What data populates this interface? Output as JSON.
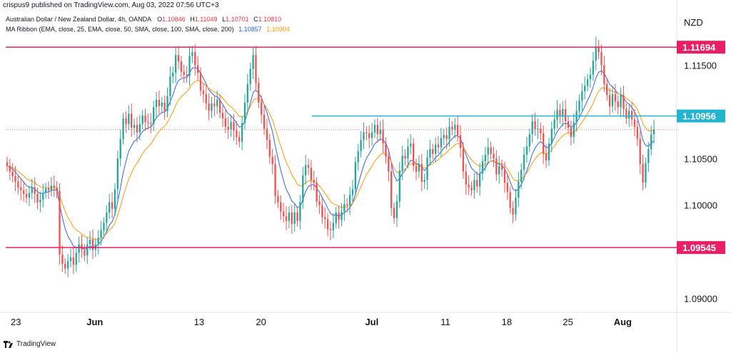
{
  "header": {
    "publisher_line": "crispus9 published on TradingView.com, Aug 03, 2022 07:56 UTC+3"
  },
  "legend": {
    "symbol_line": "Australian Dollar / New Zealand Dollar, 4h, OANDA",
    "o_label": "O",
    "o_value": "1.10846",
    "h_label": "H",
    "h_value": "1.11049",
    "l_label": "L",
    "l_value": "1.10701",
    "c_label": "C",
    "c_value": "1.10810",
    "ma_line": "MA Ribbon (EMA, close, 25, EMA, close, 50, SMA, close, 100, SMA, close, 200)",
    "ma_value_1": "1.10857",
    "ma_value_2": "1.10904"
  },
  "currency": "NZD",
  "footer": {
    "brand": "TradingView"
  },
  "colors": {
    "up": "#26a69a",
    "down": "#ef5350",
    "ema25": "#2962ff",
    "ema50": "#ff9800",
    "resistance": "#e91e63",
    "support_cyan": "#22b5d0",
    "price_dotted": "#ef5350"
  },
  "chart_data": {
    "type": "candlestick",
    "symbol": "AUDNZD",
    "timeframe": "4h",
    "y_axis_ticks": [
      "1.11500",
      "1.10500",
      "1.10000",
      "1.09000"
    ],
    "x_axis_ticks": [
      "23",
      "Jun",
      "13",
      "20",
      "Jul",
      "11",
      "18",
      "25",
      "Aug"
    ],
    "ylim": [
      1.0885,
      1.122
    ],
    "horizontal_levels": [
      {
        "label": "1.11694",
        "value": 1.11694,
        "color": "#e91e63"
      },
      {
        "label": "1.10956",
        "value": 1.10956,
        "color": "#22b5d0"
      },
      {
        "label": "1.09545",
        "value": 1.09545,
        "color": "#e91e63"
      }
    ],
    "last_price": 1.1081,
    "closes": [
      1.1042,
      1.1036,
      1.1031,
      1.1025,
      1.1019,
      1.1016,
      1.1012,
      1.1008,
      1.1013,
      1.1019,
      1.1012,
      1.1003,
      1.1006,
      1.1013,
      1.1018,
      1.1016,
      1.1021,
      1.1019,
      1.1015,
      1.0947,
      1.0937,
      1.0932,
      1.094,
      1.0944,
      1.0936,
      1.0949,
      1.0958,
      1.0952,
      1.0946,
      1.0958,
      1.0963,
      1.0952,
      1.0958,
      1.0965,
      1.0973,
      1.0981,
      1.0992,
      1.1003,
      1.0996,
      1.1017,
      1.105,
      1.1071,
      1.1093,
      1.1087,
      1.1098,
      1.1083,
      1.1086,
      1.1078,
      1.1087,
      1.1096,
      1.1089,
      1.1088,
      1.1087,
      1.1105,
      1.1113,
      1.1106,
      1.111,
      1.1101,
      1.1117,
      1.1138,
      1.1142,
      1.1161,
      1.1154,
      1.1143,
      1.114,
      1.1138,
      1.116,
      1.1164,
      1.115,
      1.1142,
      1.1123,
      1.1119,
      1.1109,
      1.1101,
      1.1109,
      1.1106,
      1.1113,
      1.1099,
      1.1093,
      1.1084,
      1.1081,
      1.1089,
      1.108,
      1.1073,
      1.1068,
      1.1088,
      1.111,
      1.113,
      1.1146,
      1.1161,
      1.1131,
      1.111,
      1.1097,
      1.1082,
      1.107,
      1.1052,
      1.1044,
      1.101,
      1.1003,
      1.0993,
      1.0988,
      1.0983,
      1.0992,
      1.098,
      1.0992,
      1.0983,
      1.1003,
      1.1032,
      1.1043,
      1.104,
      1.1027,
      1.1024,
      1.1004,
      1.1,
      1.0987,
      1.0985,
      1.0974,
      1.0973,
      1.0981,
      1.0992,
      1.0984,
      1.0993,
      1.1001,
      1.1,
      1.1011,
      1.1017,
      1.1046,
      1.1058,
      1.107,
      1.1078,
      1.1077,
      1.1072,
      1.1078,
      1.1086,
      1.1076,
      1.1081,
      1.1066,
      1.1052,
      1.1036,
      1.0997,
      1.0986,
      1.1004,
      1.1037,
      1.1053,
      1.105,
      1.1063,
      1.1066,
      1.1042,
      1.1036,
      1.1044,
      1.1025,
      1.1027,
      1.1051,
      1.106,
      1.1055,
      1.1065,
      1.1062,
      1.1072,
      1.1075,
      1.1071,
      1.1084,
      1.1081,
      1.1086,
      1.1075,
      1.1061,
      1.1036,
      1.1022,
      1.1019,
      1.1016,
      1.1027,
      1.102,
      1.1034,
      1.1047,
      1.1054,
      1.1062,
      1.1055,
      1.105,
      1.1033,
      1.1042,
      1.1038,
      1.1024,
      1.1014,
      1.0997,
      1.099,
      1.1008,
      1.1025,
      1.1038,
      1.1054,
      1.1063,
      1.1076,
      1.109,
      1.1081,
      1.1082,
      1.1077,
      1.1055,
      1.1048,
      1.1066,
      1.1082,
      1.1092,
      1.1102,
      1.1095,
      1.1103,
      1.109,
      1.1083,
      1.1073,
      1.1089,
      1.1101,
      1.1112,
      1.1122,
      1.1128,
      1.1135,
      1.114,
      1.1155,
      1.117,
      1.1164,
      1.115,
      1.113,
      1.1118,
      1.1106,
      1.1119,
      1.1111,
      1.1105,
      1.1118,
      1.1103,
      1.1093,
      1.1101,
      1.1092,
      1.1084,
      1.1071,
      1.1044,
      1.1024,
      1.1045,
      1.106,
      1.1076,
      1.1081
    ]
  }
}
